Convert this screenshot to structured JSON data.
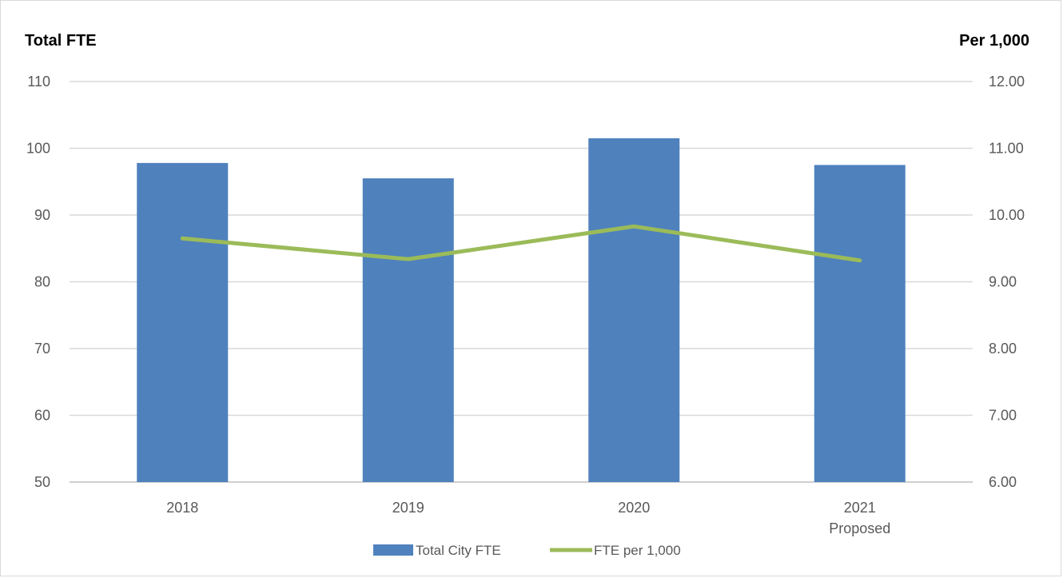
{
  "chart_data": {
    "type": "bar",
    "title": "",
    "ylabel": "Total FTE",
    "y2label": "Per 1,000",
    "categories": [
      [
        "2018"
      ],
      [
        "2019"
      ],
      [
        "2020"
      ],
      [
        "2021",
        "Proposed"
      ]
    ],
    "ylim": [
      50,
      110
    ],
    "y_ticks": [
      "50",
      "60",
      "70",
      "80",
      "90",
      "100",
      "110"
    ],
    "y2lim": [
      6.0,
      12.0
    ],
    "y2_ticks": [
      "6.00",
      "7.00",
      "8.00",
      "9.00",
      "10.00",
      "11.00",
      "12.00"
    ],
    "grid": true,
    "legend_position": "bottom",
    "series": [
      {
        "name": "Total City FTE",
        "type": "bar",
        "axis": "left",
        "color": "#4f81bd",
        "values": [
          97.8,
          95.5,
          101.5,
          97.5
        ]
      },
      {
        "name": "FTE per 1,000",
        "type": "line",
        "axis": "right",
        "color": "#9bbb59",
        "values": [
          9.65,
          9.34,
          9.83,
          9.32
        ]
      }
    ]
  }
}
